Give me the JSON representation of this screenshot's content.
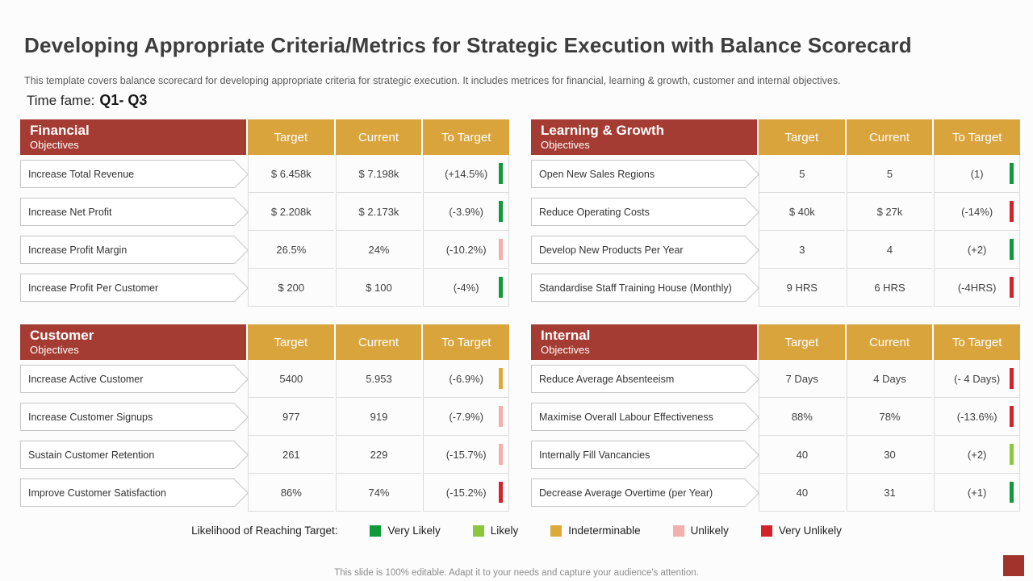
{
  "slide": {
    "title": "Developing Appropriate Criteria/Metrics for Strategic Execution with Balance Scorecard",
    "subtitle": "This template covers balance scorecard for developing appropriate criteria for strategic execution. It includes metrices for financial, learning & growth, customer and internal objectives.",
    "timeframe_label": "Time fame:",
    "timeframe_value": "Q1- Q3",
    "footer": "This slide is 100% editable. Adapt it to your needs and capture your audience's attention."
  },
  "columns": {
    "target": "Target",
    "current": "Current",
    "to_target": "To Target"
  },
  "quadrants": [
    {
      "title": "Financial",
      "subtitle": "Objectives",
      "rows": [
        {
          "objective": "Increase Total Revenue",
          "target": "$ 6.458k",
          "current": "$ 7.198k",
          "to_target": "(+14.5%)",
          "status": "very-likely",
          "status_color": "#13993c"
        },
        {
          "objective": "Increase Net Profit",
          "target": "$ 2.208k",
          "current": "$ 2.173k",
          "to_target": "(-3.9%)",
          "status": "very-likely",
          "status_color": "#13993c"
        },
        {
          "objective": "Increase Profit Margin",
          "target": "26.5%",
          "current": "24%",
          "to_target": "(-10.2%)",
          "status": "unlikely",
          "status_color": "#f2afad"
        },
        {
          "objective": "Increase Profit Per Customer",
          "target": "$ 200",
          "current": "$ 100",
          "to_target": "(-4%)",
          "status": "very-likely",
          "status_color": "#13993c"
        }
      ]
    },
    {
      "title": "Learning & Growth",
      "subtitle": "Objectives",
      "rows": [
        {
          "objective": "Open New Sales Regions",
          "target": "5",
          "current": "5",
          "to_target": "(1)",
          "status": "very-likely",
          "status_color": "#13993c"
        },
        {
          "objective": "Reduce Operating Costs",
          "target": "$ 40k",
          "current": "$ 27k",
          "to_target": "(-14%)",
          "status": "very-unlikely",
          "status_color": "#d2232a"
        },
        {
          "objective": "Develop New Products Per Year",
          "target": "3",
          "current": "4",
          "to_target": "(+2)",
          "status": "very-likely",
          "status_color": "#13993c"
        },
        {
          "objective": "Standardise Staff Training House (Monthly)",
          "target": "9 HRS",
          "current": "6 HRS",
          "to_target": "(-4HRS)",
          "status": "very-unlikely",
          "status_color": "#d2232a"
        }
      ]
    },
    {
      "title": "Customer",
      "subtitle": "Objectives",
      "rows": [
        {
          "objective": "Increase Active Customer",
          "target": "5400",
          "current": "5.953",
          "to_target": "(-6.9%)",
          "status": "indeterminable",
          "status_color": "#dda938"
        },
        {
          "objective": "Increase Customer Signups",
          "target": "977",
          "current": "919",
          "to_target": "(-7.9%)",
          "status": "unlikely",
          "status_color": "#f2afad"
        },
        {
          "objective": "Sustain Customer Retention",
          "target": "261",
          "current": "229",
          "to_target": "(-15.7%)",
          "status": "unlikely",
          "status_color": "#f2afad"
        },
        {
          "objective": "Improve Customer Satisfaction",
          "target": "86%",
          "current": "74%",
          "to_target": "(-15.2%)",
          "status": "very-unlikely",
          "status_color": "#d2232a"
        }
      ]
    },
    {
      "title": "Internal",
      "subtitle": "Objectives",
      "rows": [
        {
          "objective": "Reduce Average Absenteeism",
          "target": "7 Days",
          "current": "4 Days",
          "to_target": "(- 4 Days)",
          "status": "very-unlikely",
          "status_color": "#d2232a"
        },
        {
          "objective": "Maximise Overall Labour Effectiveness",
          "target": "88%",
          "current": "78%",
          "to_target": "(-13.6%)",
          "status": "very-unlikely",
          "status_color": "#d2232a"
        },
        {
          "objective": "Internally Fill Vancancies",
          "target": "40",
          "current": "30",
          "to_target": "(+2)",
          "status": "likely",
          "status_color": "#8cc63f"
        },
        {
          "objective": "Decrease Average Overtime (per Year)",
          "target": "40",
          "current": "31",
          "to_target": "(+1)",
          "status": "very-likely",
          "status_color": "#13993c"
        }
      ]
    }
  ],
  "legend": {
    "label": "Likelihood of Reaching Target:",
    "items": [
      {
        "label": "Very Likely",
        "color": "#13993c"
      },
      {
        "label": "Likely",
        "color": "#8cc63f"
      },
      {
        "label": "Indeterminable",
        "color": "#dda938"
      },
      {
        "label": "Unlikely",
        "color": "#f2afad"
      },
      {
        "label": "Very Unlikely",
        "color": "#d2232a"
      }
    ]
  },
  "colors": {
    "header_red": "#a53c33",
    "header_gold": "#d9a43c",
    "corner_red": "#a0342c"
  }
}
